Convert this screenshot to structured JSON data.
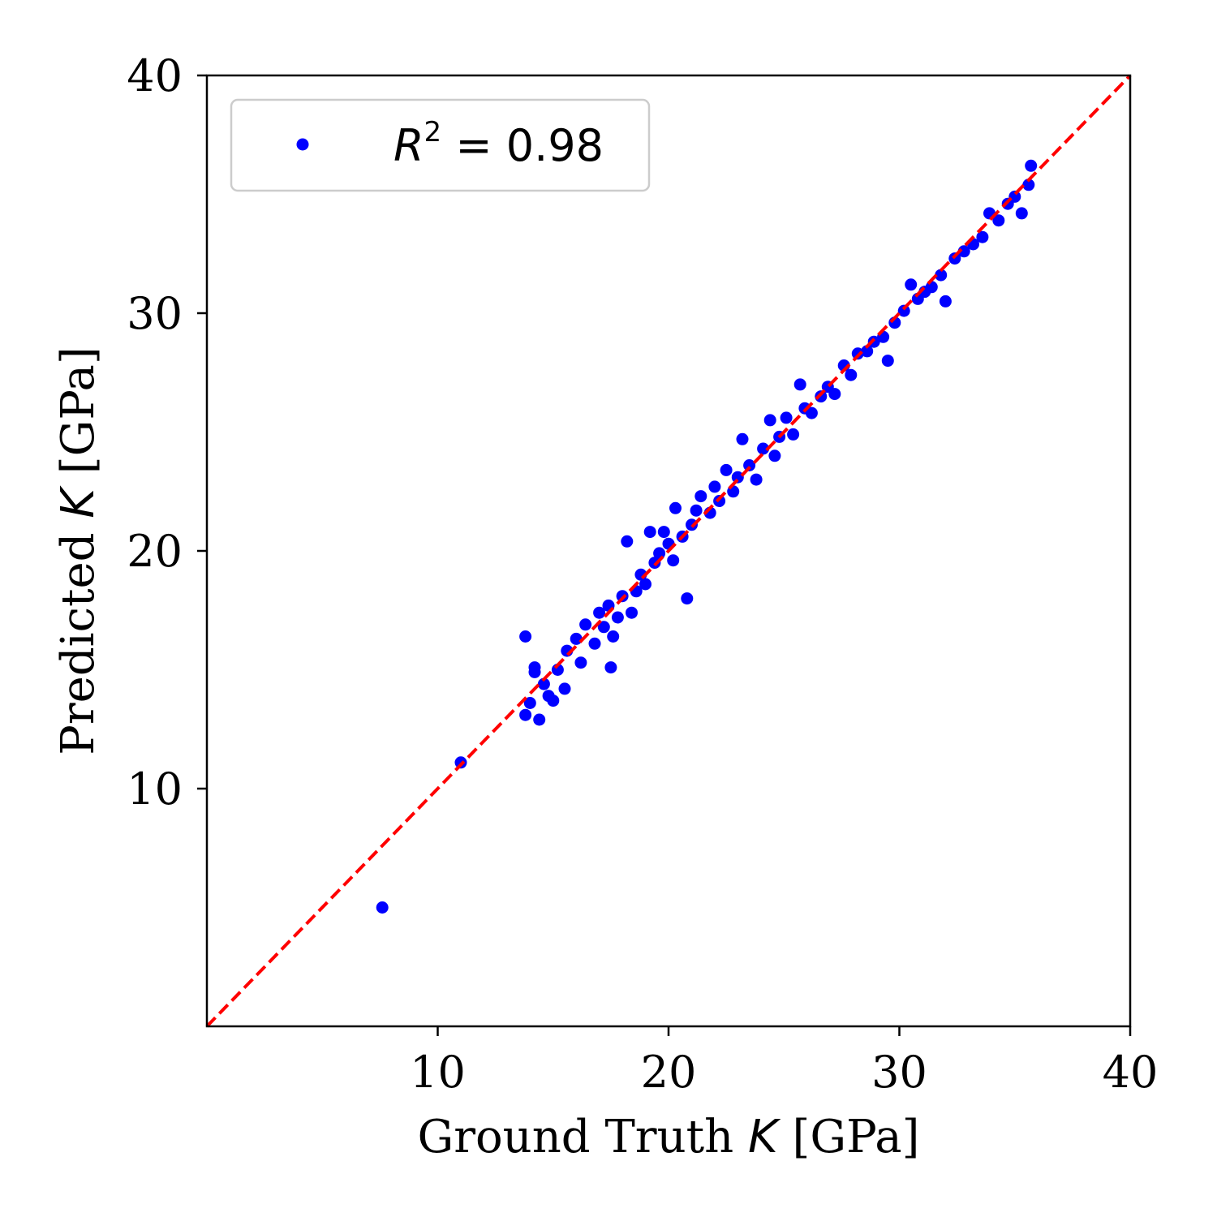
{
  "chart_data": {
    "type": "scatter",
    "xlabel": "Ground Truth K [GPa]",
    "xlabel_parts": {
      "before": "Ground Truth ",
      "var": "K",
      "after": " [GPa]"
    },
    "ylabel": "Predicted K [GPa]",
    "ylabel_parts": {
      "before": "Predicted ",
      "var": "K",
      "after": " [GPa]"
    },
    "xlim": [
      0,
      40
    ],
    "ylim": [
      0,
      40
    ],
    "x_ticks": [
      10,
      20,
      30,
      40
    ],
    "y_ticks": [
      10,
      20,
      30,
      40
    ],
    "x_tick_labels": [
      "10",
      "20",
      "30",
      "40"
    ],
    "y_tick_labels": [
      "10",
      "20",
      "30",
      "40"
    ],
    "grid": false,
    "legend": {
      "placement": "top-left",
      "entries": [
        {
          "label": "R^2 = 0.98",
          "label_parts": {
            "var": "R",
            "sup": "2",
            "rest": " = 0.98"
          },
          "marker": "dot",
          "color": "#0000ff"
        }
      ]
    },
    "reference_line": {
      "from": [
        0,
        0
      ],
      "to": [
        40,
        40
      ],
      "style": "dashed",
      "color": "#ff0000"
    },
    "series": [
      {
        "name": "R^2 = 0.98",
        "color": "#0000ff",
        "points": [
          [
            7.6,
            5.0
          ],
          [
            11.0,
            11.1
          ],
          [
            13.8,
            16.4
          ],
          [
            13.8,
            13.1
          ],
          [
            14.0,
            13.6
          ],
          [
            14.2,
            14.9
          ],
          [
            14.2,
            15.1
          ],
          [
            14.4,
            12.9
          ],
          [
            14.6,
            14.4
          ],
          [
            14.8,
            13.9
          ],
          [
            15.0,
            13.7
          ],
          [
            15.2,
            15.0
          ],
          [
            15.5,
            14.2
          ],
          [
            15.6,
            15.8
          ],
          [
            16.0,
            16.3
          ],
          [
            16.2,
            15.3
          ],
          [
            16.4,
            16.9
          ],
          [
            16.8,
            16.1
          ],
          [
            17.0,
            17.4
          ],
          [
            17.2,
            16.8
          ],
          [
            17.4,
            17.7
          ],
          [
            17.5,
            15.1
          ],
          [
            17.6,
            16.4
          ],
          [
            17.8,
            17.2
          ],
          [
            18.0,
            18.1
          ],
          [
            18.2,
            20.4
          ],
          [
            18.4,
            17.4
          ],
          [
            18.6,
            18.3
          ],
          [
            18.8,
            19.0
          ],
          [
            19.0,
            18.6
          ],
          [
            19.2,
            20.8
          ],
          [
            19.4,
            19.5
          ],
          [
            19.6,
            19.9
          ],
          [
            19.8,
            20.8
          ],
          [
            20.0,
            20.3
          ],
          [
            20.2,
            19.6
          ],
          [
            20.3,
            21.8
          ],
          [
            20.6,
            20.6
          ],
          [
            20.8,
            18.0
          ],
          [
            21.0,
            21.1
          ],
          [
            21.2,
            21.7
          ],
          [
            21.4,
            22.3
          ],
          [
            21.8,
            21.6
          ],
          [
            22.0,
            22.7
          ],
          [
            22.2,
            22.1
          ],
          [
            22.5,
            23.4
          ],
          [
            22.8,
            22.5
          ],
          [
            23.0,
            23.1
          ],
          [
            23.2,
            24.7
          ],
          [
            23.5,
            23.6
          ],
          [
            23.8,
            23.0
          ],
          [
            24.1,
            24.3
          ],
          [
            24.4,
            25.5
          ],
          [
            24.6,
            24.0
          ],
          [
            24.8,
            24.8
          ],
          [
            25.1,
            25.6
          ],
          [
            25.4,
            24.9
          ],
          [
            25.7,
            27.0
          ],
          [
            25.9,
            26.0
          ],
          [
            26.2,
            25.8
          ],
          [
            26.6,
            26.5
          ],
          [
            26.9,
            26.9
          ],
          [
            27.2,
            26.6
          ],
          [
            27.6,
            27.8
          ],
          [
            27.9,
            27.4
          ],
          [
            28.2,
            28.3
          ],
          [
            28.6,
            28.4
          ],
          [
            28.9,
            28.8
          ],
          [
            29.3,
            29.0
          ],
          [
            29.5,
            28.0
          ],
          [
            29.8,
            29.6
          ],
          [
            30.2,
            30.1
          ],
          [
            30.5,
            31.2
          ],
          [
            30.8,
            30.6
          ],
          [
            31.1,
            30.9
          ],
          [
            31.4,
            31.1
          ],
          [
            31.8,
            31.6
          ],
          [
            32.0,
            30.5
          ],
          [
            32.4,
            32.3
          ],
          [
            32.8,
            32.6
          ],
          [
            33.2,
            32.9
          ],
          [
            33.6,
            33.2
          ],
          [
            33.9,
            34.2
          ],
          [
            34.3,
            33.9
          ],
          [
            34.7,
            34.6
          ],
          [
            35.0,
            34.9
          ],
          [
            35.3,
            34.2
          ],
          [
            35.6,
            35.4
          ],
          [
            35.7,
            36.2
          ]
        ]
      }
    ]
  },
  "colors": {
    "points": "#0000ff",
    "reference_line": "#ff0000",
    "axes": "#000000",
    "legend_border": "#cccccc"
  }
}
